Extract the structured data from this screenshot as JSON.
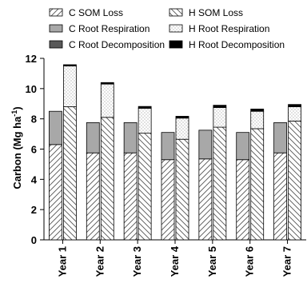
{
  "chart_data": {
    "type": "bar",
    "stacked": true,
    "grouped": true,
    "title": "",
    "xlabel": "",
    "ylabel": "Carbon (Mg ha⁻¹)",
    "ylabel_base": "Carbon (Mg ha",
    "ylabel_sup": "-1",
    "ylabel_end": ")",
    "ylim": [
      0,
      12
    ],
    "yticks": [
      "0",
      "2",
      "4",
      "6",
      "8",
      "10",
      "12"
    ],
    "grid": false,
    "legend_position": "top",
    "categories": [
      "Year 1",
      "Year 2",
      "Year 3",
      "Year 4",
      "Year 5",
      "Year 6",
      "Year 7"
    ],
    "groups": [
      {
        "prefix": "C",
        "stacks": [
          {
            "name": "C SOM Loss",
            "pattern": "diag-fwd",
            "values": [
              6.3,
              5.75,
              5.75,
              5.3,
              5.35,
              5.3,
              5.75
            ]
          },
          {
            "name": "C Root Respiration",
            "pattern": "gray",
            "values": [
              2.2,
              2.0,
              2.0,
              1.8,
              1.9,
              1.8,
              2.0
            ]
          },
          {
            "name": "C Root Decomposition",
            "pattern": "darkgray",
            "values": [
              0.0,
              0.0,
              0.0,
              0.0,
              0.0,
              0.0,
              0.0
            ]
          }
        ]
      },
      {
        "prefix": "H",
        "stacks": [
          {
            "name": "H SOM Loss",
            "pattern": "diag-back",
            "values": [
              8.8,
              8.1,
              7.05,
              6.65,
              7.45,
              7.35,
              7.85
            ]
          },
          {
            "name": "H Root Respiration",
            "pattern": "dots",
            "values": [
              2.7,
              2.2,
              1.65,
              1.4,
              1.3,
              1.15,
              0.95
            ]
          },
          {
            "name": "H Root Decomposition",
            "pattern": "black",
            "values": [
              0.08,
              0.1,
              0.12,
              0.12,
              0.15,
              0.15,
              0.15
            ]
          }
        ]
      }
    ],
    "legend_order": [
      "C SOM Loss",
      "H SOM Loss",
      "C Root Respiration",
      "H Root Respiration",
      "C Root Decomposition",
      "H Root Decomposition"
    ]
  }
}
